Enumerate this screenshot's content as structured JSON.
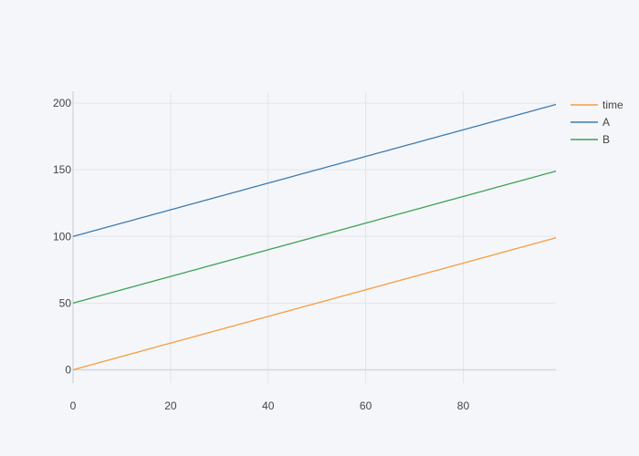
{
  "chart_data": {
    "type": "line",
    "x": {
      "start": 0,
      "end": 99,
      "step": 1
    },
    "series": [
      {
        "name": "time",
        "color": "#f59c42",
        "start": 0,
        "end": 99
      },
      {
        "name": "A",
        "color": "#3d7bb0",
        "start": 100,
        "end": 199
      },
      {
        "name": "B",
        "color": "#3ba157",
        "start": 50,
        "end": 149
      }
    ],
    "xlim": [
      0,
      99
    ],
    "ylim": [
      -9.95,
      208.95
    ],
    "xticks": [
      0,
      20,
      40,
      60,
      80
    ],
    "yticks": [
      0,
      50,
      100,
      150,
      200
    ],
    "xtick_labels": [
      "0",
      "20",
      "40",
      "60",
      "80"
    ],
    "ytick_labels": [
      "0",
      "50",
      "100",
      "150",
      "200"
    ],
    "title": "",
    "xlabel": "",
    "ylabel": "",
    "grid": true,
    "legend_position": "top-right",
    "colors": {
      "background": "#f5f6f9",
      "plot_background": "#f5f6f9",
      "grid": "#e2e5ec",
      "zero_line": "#d3d8e1",
      "tick_text": "#444444"
    }
  }
}
